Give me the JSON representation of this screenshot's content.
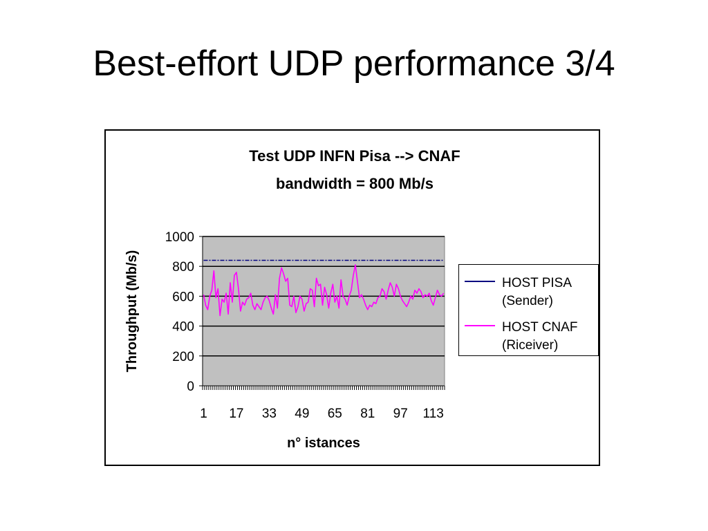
{
  "slide": {
    "title": "Best-effort UDP performance 3/4"
  },
  "chart_data": {
    "type": "line",
    "title": "Test UDP INFN Pisa --> CNAF",
    "subtitle": "bandwidth = 800 Mb/s",
    "xlabel": "n° istances",
    "ylabel": "Throughput (Mb/s)",
    "ylim": [
      0,
      1000
    ],
    "yticks": [
      0,
      200,
      400,
      600,
      800,
      1000
    ],
    "xtick_labels": [
      "1",
      "17",
      "33",
      "49",
      "65",
      "81",
      "97",
      "113"
    ],
    "x_range": [
      1,
      118
    ],
    "grid": "horizontal",
    "plot_background": "#c0c0c0",
    "legend_position": "right",
    "series": [
      {
        "name_line1": "HOST PISA",
        "name_line2": "(Sender)",
        "color": "#000080",
        "style": "dashed",
        "values": [
          840,
          840,
          840,
          840,
          840,
          840,
          840,
          840,
          840,
          840,
          840,
          840,
          840,
          840,
          840,
          840,
          840,
          840,
          840,
          840,
          840,
          840,
          840,
          840,
          840,
          840,
          840,
          840,
          840,
          840,
          840,
          840,
          840,
          840,
          840,
          840,
          840,
          840,
          840,
          840,
          840,
          840,
          840,
          840,
          840,
          840,
          840,
          840,
          840,
          840,
          840,
          840,
          840,
          840,
          840,
          840,
          840,
          840,
          840,
          840,
          840,
          840,
          840,
          840,
          840,
          840,
          840,
          840,
          840,
          840,
          840,
          840,
          840,
          840,
          840,
          840,
          840,
          840,
          840,
          840,
          840,
          840,
          840,
          840,
          840,
          840,
          840,
          840,
          840,
          840,
          840,
          840,
          840,
          840,
          840,
          840,
          840,
          840,
          840,
          840,
          840,
          840,
          840,
          840,
          840,
          840,
          840,
          840,
          840,
          840,
          840,
          840,
          840,
          840,
          840,
          840,
          840,
          840
        ]
      },
      {
        "name_line1": "HOST CNAF",
        "name_line2": "(Riceiver)",
        "color": "#ff00ff",
        "style": "solid",
        "values": [
          610,
          540,
          510,
          600,
          640,
          770,
          590,
          650,
          470,
          580,
          560,
          620,
          480,
          690,
          560,
          740,
          760,
          650,
          500,
          560,
          540,
          580,
          590,
          620,
          540,
          510,
          550,
          530,
          510,
          560,
          590,
          600,
          570,
          520,
          480,
          610,
          520,
          720,
          790,
          750,
          700,
          720,
          540,
          530,
          600,
          490,
          530,
          600,
          580,
          500,
          550,
          560,
          650,
          640,
          530,
          720,
          670,
          680,
          540,
          660,
          610,
          520,
          620,
          680,
          560,
          600,
          520,
          710,
          600,
          580,
          540,
          600,
          640,
          740,
          810,
          700,
          590,
          610,
          580,
          540,
          510,
          540,
          530,
          560,
          550,
          590,
          600,
          650,
          630,
          580,
          640,
          690,
          660,
          600,
          680,
          650,
          600,
          570,
          550,
          530,
          560,
          600,
          580,
          640,
          620,
          650,
          630,
          590,
          610,
          600,
          620,
          570,
          540,
          590,
          640,
          610,
          600,
          620
        ]
      }
    ]
  }
}
